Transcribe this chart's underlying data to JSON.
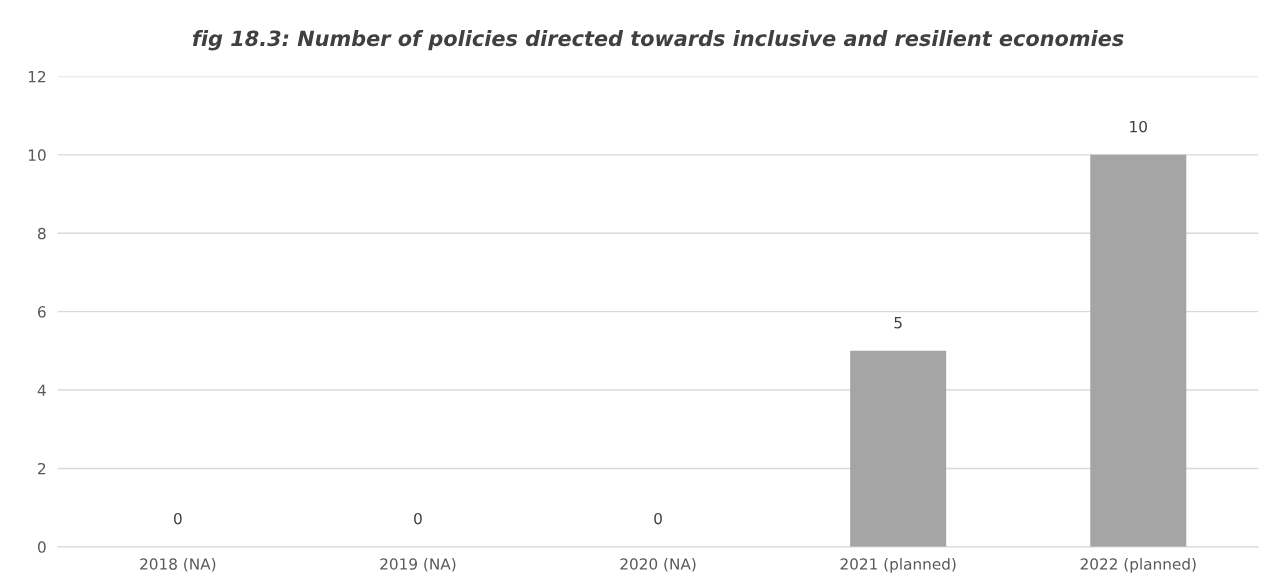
{
  "chart_data": {
    "type": "bar",
    "title": "fig 18.3: Number of policies directed towards inclusive and resilient economies",
    "categories": [
      "2018 (NA)",
      "2019 (NA)",
      "2020 (NA)",
      "2021 (planned)",
      "2022 (planned)"
    ],
    "values": [
      0,
      0,
      0,
      5,
      10
    ],
    "color": "#a5a5a5",
    "ylim": [
      0,
      12
    ],
    "yticks": [
      0,
      2,
      4,
      6,
      8,
      10,
      12
    ],
    "grid": "y",
    "data_labels": true
  }
}
